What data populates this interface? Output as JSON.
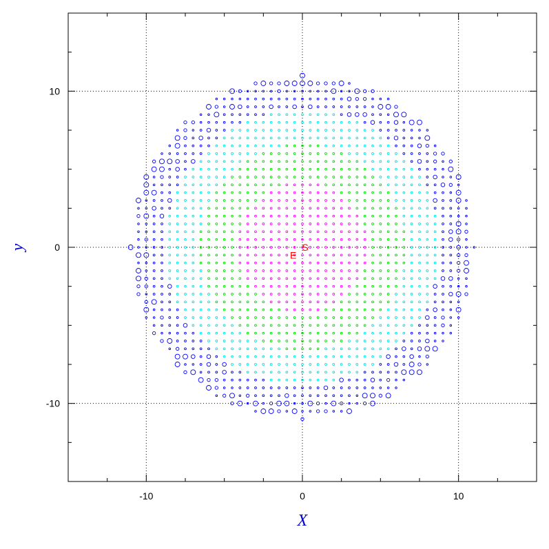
{
  "chart_data": {
    "type": "scatter",
    "xlabel": "X",
    "ylabel": "y",
    "xlim": [
      -15,
      15
    ],
    "ylim": [
      -15,
      15
    ],
    "x_ticks": [
      -10,
      0,
      10
    ],
    "y_ticks": [
      -10,
      0,
      10
    ],
    "x_tick_labels": [
      "-10",
      "0",
      "10"
    ],
    "y_tick_labels": [
      "-10",
      "0",
      "10"
    ],
    "grid": "dotted lines at -10, 0, 10",
    "grid_spacing": 0.5,
    "disk_radius": 11,
    "disk_center": [
      0,
      0
    ],
    "ring_series": [
      {
        "color": "#ff00ff",
        "r_min": 0,
        "r_max": 4.2
      },
      {
        "color": "#00dd00",
        "r_min": 4.2,
        "r_max": 6.6
      },
      {
        "color": "#00e0e0",
        "r_min": 6.6,
        "r_max": 8.8
      },
      {
        "color": "#0000ff",
        "r_min": 8.8,
        "r_max": 11
      }
    ],
    "center_markers": [
      {
        "label": "S",
        "x": 0,
        "y": 0,
        "color": "#ff0000"
      },
      {
        "label": "E",
        "x": -0.5,
        "y": -0.5,
        "color": "#ff0000"
      }
    ],
    "axis_label_color": "#0000cc"
  }
}
